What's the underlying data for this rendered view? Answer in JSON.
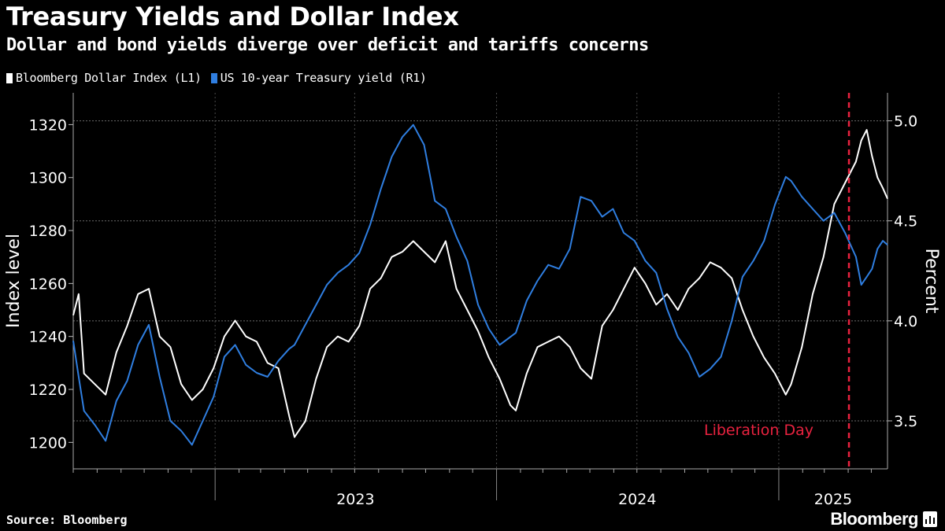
{
  "header": {
    "title": "Treasury Yields and Dollar Index",
    "subtitle": "Dollar and bond yields diverge over deficit and tariffs concerns"
  },
  "footer": {
    "source": "Source: Bloomberg",
    "brand": "Bloomberg"
  },
  "colors": {
    "background": "#000000",
    "dxy": "#ffffff",
    "yield": "#2f7ee0",
    "event": "#e8223f",
    "grid": "#777777"
  },
  "chart_data": {
    "type": "line",
    "title": "Treasury Yields and Dollar Index",
    "subtitle": "Dollar and bond yields diverge over deficit and tariffs concerns",
    "legend_placement": "top-left",
    "grid": true,
    "x_axis": {
      "range": [
        "2022-07-01",
        "2025-05-22"
      ],
      "tick_labels": [
        "2023",
        "2024",
        "2025"
      ]
    },
    "y_left": {
      "label": "Index level",
      "range": [
        1190,
        1332
      ],
      "ticks": [
        1200,
        1220,
        1240,
        1260,
        1280,
        1300,
        1320
      ]
    },
    "y_right": {
      "label": "Percent",
      "range": [
        3.26,
        5.14
      ],
      "ticks": [
        "3.5",
        "4.0",
        "4.5",
        "5.0"
      ]
    },
    "series": [
      {
        "name": "Bloomberg Dollar Index (L1)",
        "axis": "left",
        "color": "#ffffff",
        "points": [
          [
            "2022-07-01",
            1248
          ],
          [
            "2022-07-08",
            1256
          ],
          [
            "2022-07-15",
            1226
          ],
          [
            "2022-07-29",
            1222
          ],
          [
            "2022-08-12",
            1218
          ],
          [
            "2022-08-26",
            1234
          ],
          [
            "2022-09-09",
            1244
          ],
          [
            "2022-09-23",
            1256
          ],
          [
            "2022-10-07",
            1258
          ],
          [
            "2022-10-21",
            1240
          ],
          [
            "2022-11-04",
            1236
          ],
          [
            "2022-11-18",
            1222
          ],
          [
            "2022-12-02",
            1216
          ],
          [
            "2022-12-16",
            1220
          ],
          [
            "2022-12-30",
            1228
          ],
          [
            "2023-01-13",
            1240
          ],
          [
            "2023-01-27",
            1246
          ],
          [
            "2023-02-10",
            1240
          ],
          [
            "2023-02-24",
            1238
          ],
          [
            "2023-03-10",
            1230
          ],
          [
            "2023-03-24",
            1228
          ],
          [
            "2023-04-07",
            1210
          ],
          [
            "2023-04-14",
            1202
          ],
          [
            "2023-04-28",
            1208
          ],
          [
            "2023-05-12",
            1224
          ],
          [
            "2023-05-26",
            1236
          ],
          [
            "2023-06-09",
            1240
          ],
          [
            "2023-06-23",
            1238
          ],
          [
            "2023-07-07",
            1244
          ],
          [
            "2023-07-21",
            1258
          ],
          [
            "2023-08-04",
            1262
          ],
          [
            "2023-08-18",
            1270
          ],
          [
            "2023-09-01",
            1272
          ],
          [
            "2023-09-15",
            1276
          ],
          [
            "2023-09-29",
            1272
          ],
          [
            "2023-10-13",
            1268
          ],
          [
            "2023-10-27",
            1276
          ],
          [
            "2023-11-10",
            1258
          ],
          [
            "2023-11-24",
            1250
          ],
          [
            "2023-12-08",
            1242
          ],
          [
            "2023-12-22",
            1232
          ],
          [
            "2024-01-05",
            1224
          ],
          [
            "2024-01-19",
            1214
          ],
          [
            "2024-01-26",
            1212
          ],
          [
            "2024-02-09",
            1226
          ],
          [
            "2024-02-23",
            1236
          ],
          [
            "2024-03-08",
            1238
          ],
          [
            "2024-03-22",
            1240
          ],
          [
            "2024-04-05",
            1236
          ],
          [
            "2024-04-19",
            1228
          ],
          [
            "2024-05-03",
            1224
          ],
          [
            "2024-05-17",
            1244
          ],
          [
            "2024-05-31",
            1250
          ],
          [
            "2024-06-14",
            1258
          ],
          [
            "2024-06-28",
            1266
          ],
          [
            "2024-07-12",
            1260
          ],
          [
            "2024-07-26",
            1252
          ],
          [
            "2024-08-09",
            1256
          ],
          [
            "2024-08-23",
            1250
          ],
          [
            "2024-09-06",
            1258
          ],
          [
            "2024-09-20",
            1262
          ],
          [
            "2024-10-04",
            1268
          ],
          [
            "2024-10-18",
            1266
          ],
          [
            "2024-11-01",
            1262
          ],
          [
            "2024-11-15",
            1250
          ],
          [
            "2024-11-29",
            1240
          ],
          [
            "2024-12-13",
            1232
          ],
          [
            "2024-12-27",
            1226
          ],
          [
            "2025-01-10",
            1218
          ],
          [
            "2025-01-17",
            1222
          ],
          [
            "2025-01-31",
            1236
          ],
          [
            "2025-02-14",
            1256
          ],
          [
            "2025-02-28",
            1270
          ],
          [
            "2025-03-14",
            1290
          ],
          [
            "2025-03-28",
            1298
          ],
          [
            "2025-04-11",
            1306
          ],
          [
            "2025-04-18",
            1314
          ],
          [
            "2025-04-25",
            1318
          ],
          [
            "2025-05-02",
            1308
          ],
          [
            "2025-05-09",
            1300
          ],
          [
            "2025-05-16",
            1296
          ],
          [
            "2025-05-22",
            1292
          ]
        ]
      },
      {
        "name": "US 10-year Treasury yield (R1)",
        "axis": "right",
        "color": "#2f7ee0",
        "points": [
          [
            "2022-07-01",
            3.9
          ],
          [
            "2022-07-08",
            3.72
          ],
          [
            "2022-07-15",
            3.55
          ],
          [
            "2022-07-29",
            3.48
          ],
          [
            "2022-08-12",
            3.4
          ],
          [
            "2022-08-26",
            3.6
          ],
          [
            "2022-09-09",
            3.7
          ],
          [
            "2022-09-23",
            3.88
          ],
          [
            "2022-10-07",
            3.98
          ],
          [
            "2022-10-21",
            3.72
          ],
          [
            "2022-11-04",
            3.5
          ],
          [
            "2022-11-18",
            3.45
          ],
          [
            "2022-12-02",
            3.38
          ],
          [
            "2022-12-16",
            3.5
          ],
          [
            "2022-12-30",
            3.62
          ],
          [
            "2023-01-13",
            3.82
          ],
          [
            "2023-01-27",
            3.88
          ],
          [
            "2023-02-10",
            3.78
          ],
          [
            "2023-02-24",
            3.74
          ],
          [
            "2023-03-10",
            3.72
          ],
          [
            "2023-03-24",
            3.8
          ],
          [
            "2023-04-07",
            3.86
          ],
          [
            "2023-04-14",
            3.88
          ],
          [
            "2023-04-28",
            3.98
          ],
          [
            "2023-05-12",
            4.08
          ],
          [
            "2023-05-26",
            4.18
          ],
          [
            "2023-06-09",
            4.24
          ],
          [
            "2023-06-23",
            4.28
          ],
          [
            "2023-07-07",
            4.34
          ],
          [
            "2023-07-21",
            4.48
          ],
          [
            "2023-08-04",
            4.66
          ],
          [
            "2023-08-18",
            4.82
          ],
          [
            "2023-09-01",
            4.92
          ],
          [
            "2023-09-15",
            4.98
          ],
          [
            "2023-09-29",
            4.88
          ],
          [
            "2023-10-13",
            4.6
          ],
          [
            "2023-10-27",
            4.56
          ],
          [
            "2023-11-10",
            4.42
          ],
          [
            "2023-11-24",
            4.3
          ],
          [
            "2023-12-08",
            4.08
          ],
          [
            "2023-12-22",
            3.96
          ],
          [
            "2024-01-05",
            3.88
          ],
          [
            "2024-01-19",
            3.92
          ],
          [
            "2024-01-26",
            3.94
          ],
          [
            "2024-02-09",
            4.1
          ],
          [
            "2024-02-23",
            4.2
          ],
          [
            "2024-03-08",
            4.28
          ],
          [
            "2024-03-22",
            4.26
          ],
          [
            "2024-04-05",
            4.36
          ],
          [
            "2024-04-19",
            4.62
          ],
          [
            "2024-05-03",
            4.6
          ],
          [
            "2024-05-17",
            4.52
          ],
          [
            "2024-05-31",
            4.56
          ],
          [
            "2024-06-14",
            4.44
          ],
          [
            "2024-06-28",
            4.4
          ],
          [
            "2024-07-12",
            4.3
          ],
          [
            "2024-07-26",
            4.24
          ],
          [
            "2024-08-09",
            4.06
          ],
          [
            "2024-08-23",
            3.92
          ],
          [
            "2024-09-06",
            3.84
          ],
          [
            "2024-09-20",
            3.72
          ],
          [
            "2024-10-04",
            3.76
          ],
          [
            "2024-10-18",
            3.82
          ],
          [
            "2024-11-01",
            4.0
          ],
          [
            "2024-11-15",
            4.22
          ],
          [
            "2024-11-29",
            4.3
          ],
          [
            "2024-12-13",
            4.4
          ],
          [
            "2024-12-27",
            4.58
          ],
          [
            "2025-01-10",
            4.72
          ],
          [
            "2025-01-17",
            4.7
          ],
          [
            "2025-01-31",
            4.62
          ],
          [
            "2025-02-14",
            4.56
          ],
          [
            "2025-02-28",
            4.5
          ],
          [
            "2025-03-14",
            4.54
          ],
          [
            "2025-03-28",
            4.44
          ],
          [
            "2025-04-11",
            4.32
          ],
          [
            "2025-04-18",
            4.18
          ],
          [
            "2025-04-25",
            4.22
          ],
          [
            "2025-05-02",
            4.26
          ],
          [
            "2025-05-09",
            4.36
          ],
          [
            "2025-05-16",
            4.4
          ],
          [
            "2025-05-22",
            4.38
          ]
        ]
      }
    ],
    "annotations": [
      {
        "type": "vertical-line",
        "x": "2025-04-02",
        "label": "Liberation Day",
        "color": "#e8223f"
      }
    ]
  }
}
